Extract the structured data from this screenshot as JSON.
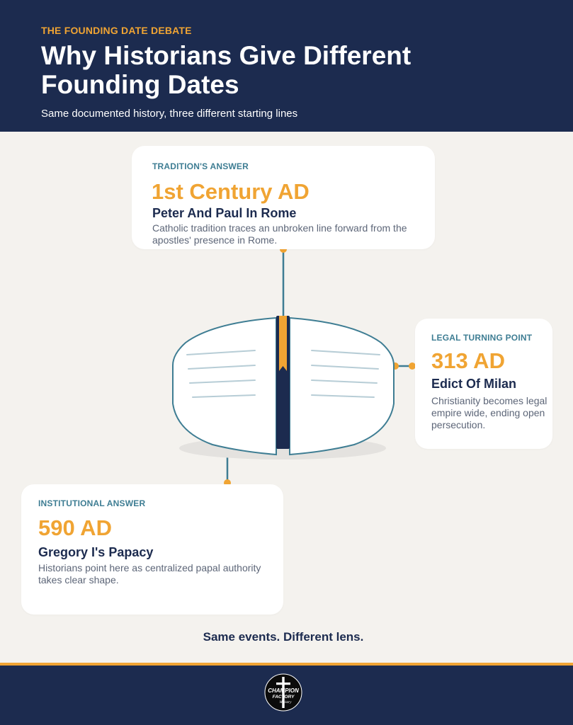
{
  "header": {
    "eyebrow": "THE FOUNDING DATE DEBATE",
    "title": "Why Historians Give Different Founding Dates",
    "subtitle": "Same documented history, three different starting lines"
  },
  "cards": {
    "tradition": {
      "label": "TRADITION'S ANSWER",
      "date": "1st Century AD",
      "heading": "Peter And Paul In Rome",
      "description": "Catholic tradition traces an unbroken line forward from the apostles' presence in Rome."
    },
    "legal": {
      "label": "LEGAL TURNING POINT",
      "date": "313 AD",
      "heading": "Edict Of Milan",
      "description": "Christianity becomes legal empire wide, ending open persecution."
    },
    "institutional": {
      "label": "INSTITUTIONAL ANSWER",
      "date": "590 AD",
      "heading": "Gregory I's Papacy",
      "description": "Historians point here as centralized papal authority takes clear shape."
    }
  },
  "tagline": "Same events. Different lens.",
  "footer": {
    "logo": {
      "icon": "cross-logo-icon",
      "line1": "CHAMPION",
      "line2": "FACTORY",
      "line3": "Ministry"
    }
  },
  "colors": {
    "navy": "#1c2b4f",
    "accent": "#f0a433",
    "teal": "#3e7d93",
    "background": "#f4f2ee"
  }
}
